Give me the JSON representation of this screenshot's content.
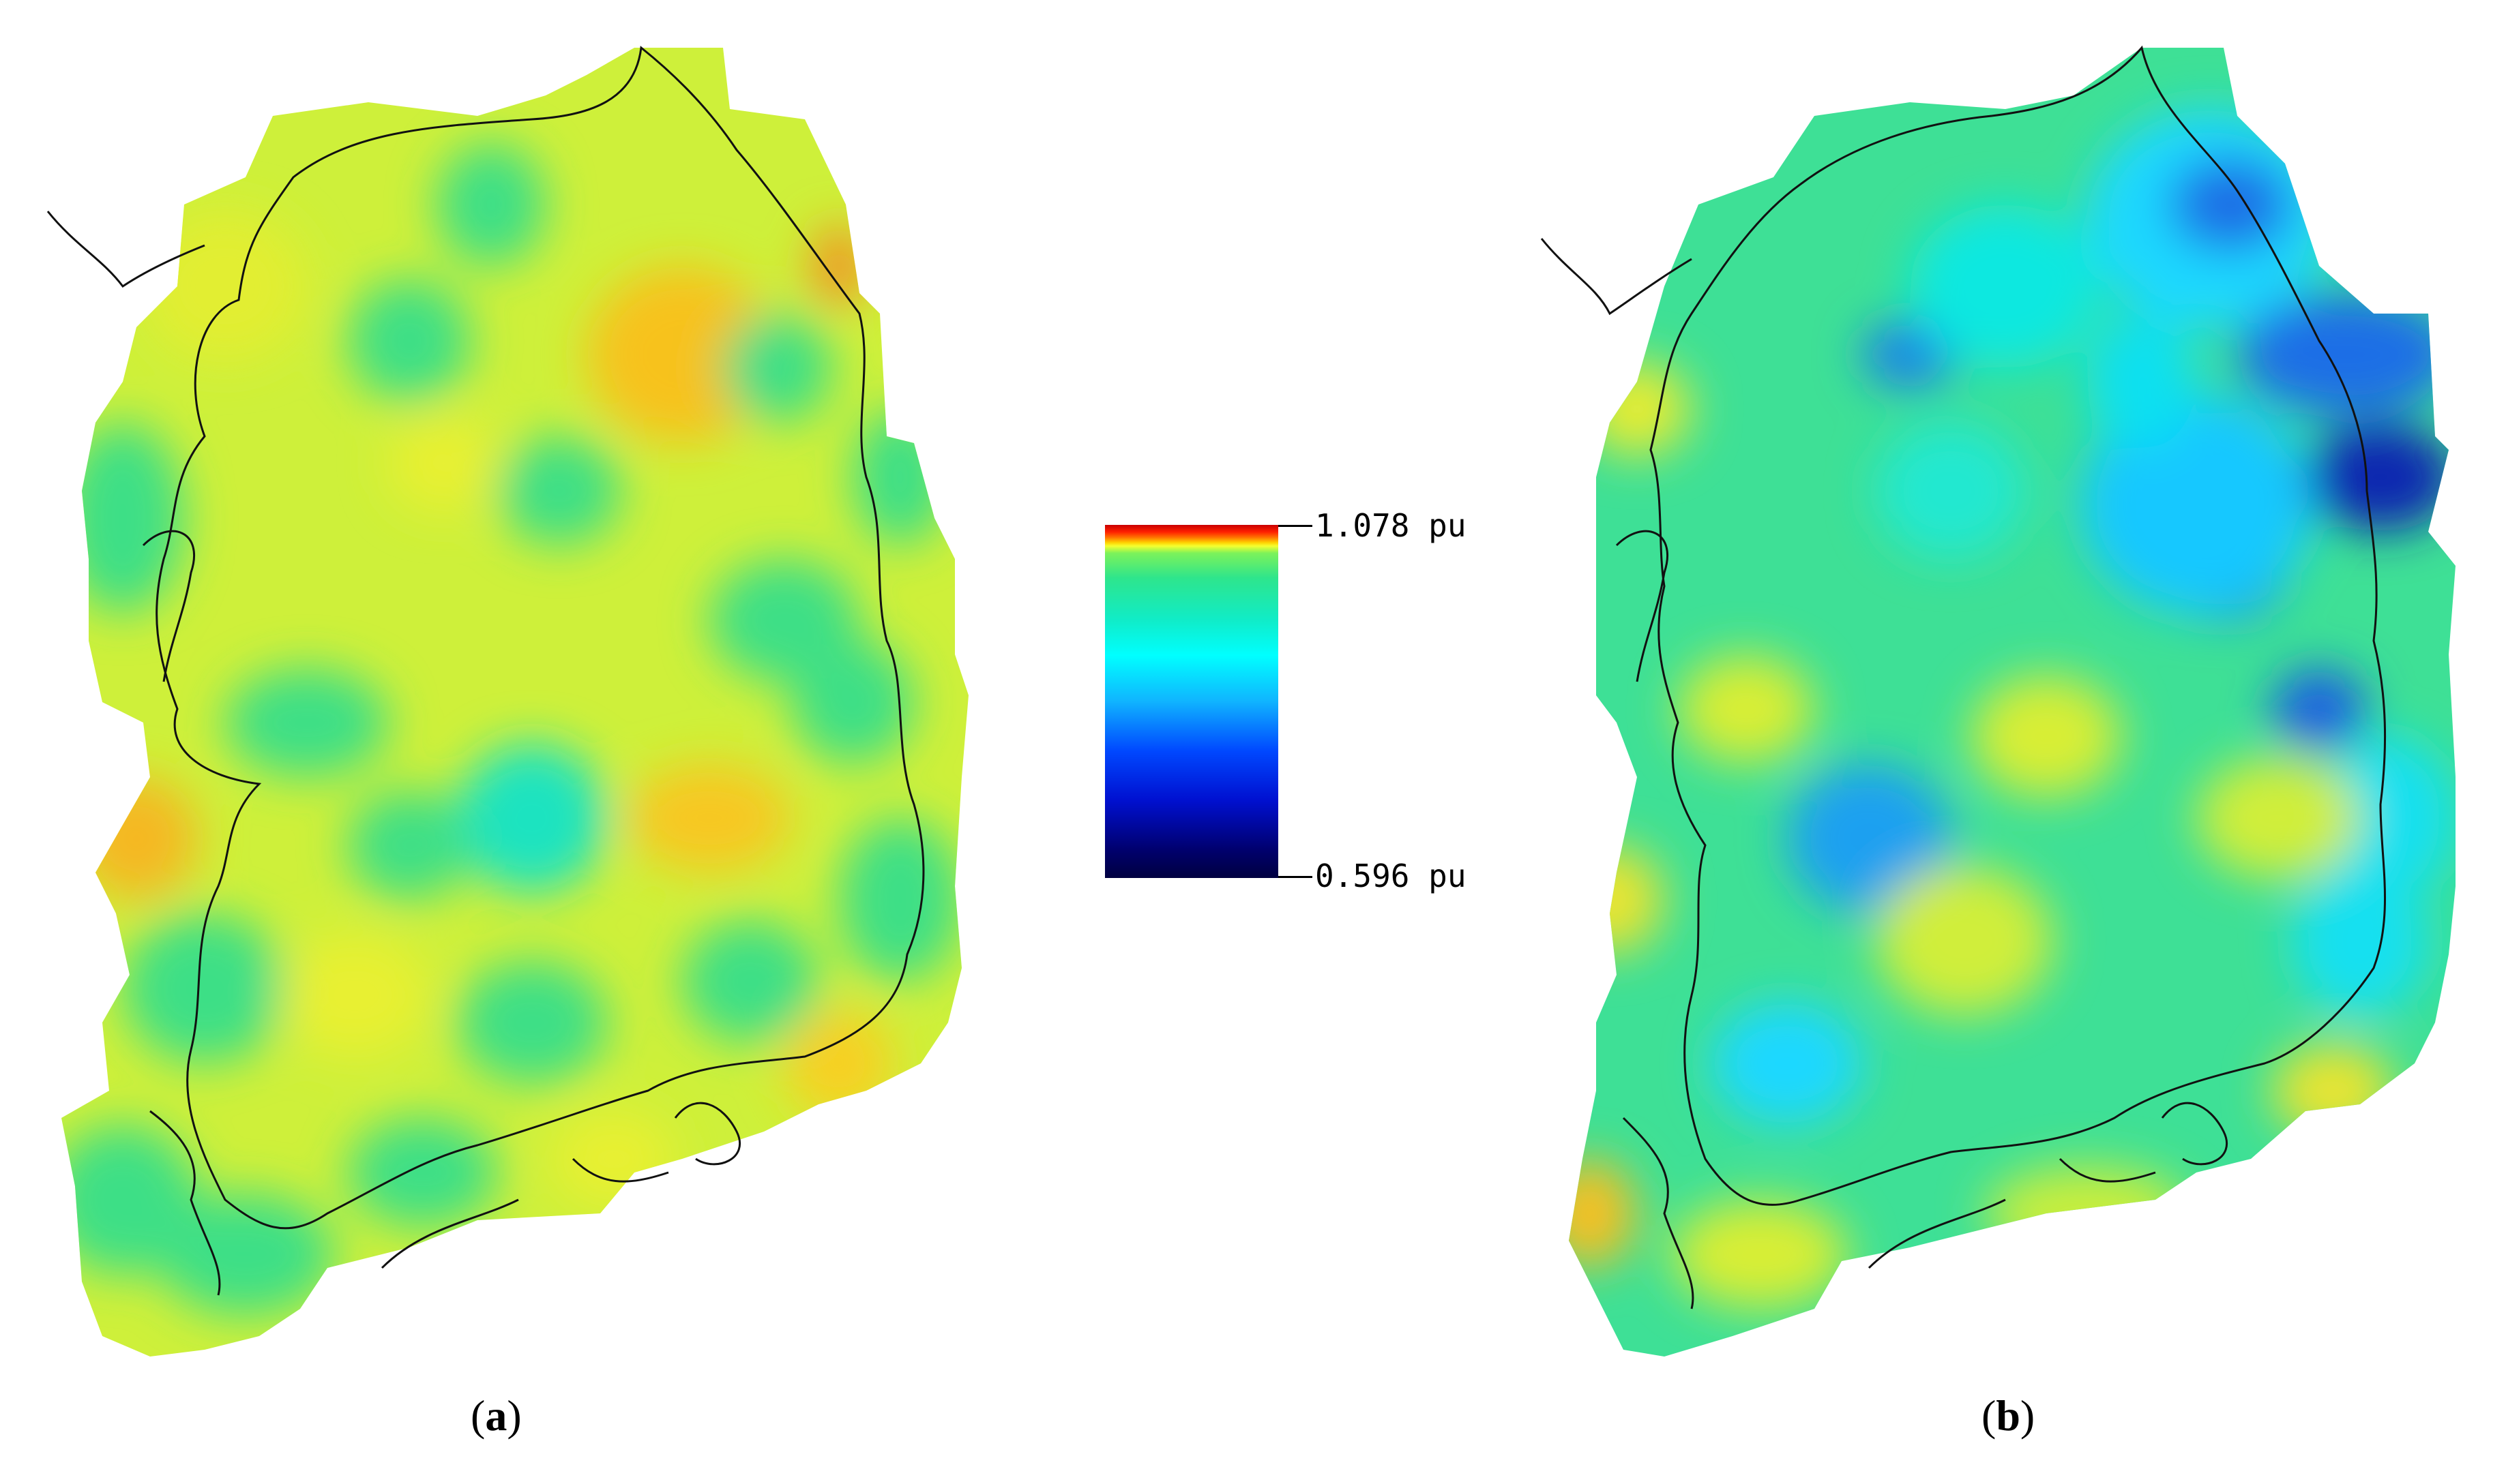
{
  "legend": {
    "max_label": "1.078 pu",
    "min_label": "0.596 pu",
    "max_value": 1.078,
    "min_value": 0.596,
    "colormap": [
      "#c80000",
      "#ff7000",
      "#f4ff30",
      "#2ee58c",
      "#00ffff",
      "#0048ff",
      "#00006e"
    ]
  },
  "panels": [
    {
      "id": "a",
      "caption_open": "(",
      "caption_letter": "a",
      "caption_close": ")"
    },
    {
      "id": "b",
      "caption_open": "(",
      "caption_letter": "b",
      "caption_close": ")"
    }
  ]
}
